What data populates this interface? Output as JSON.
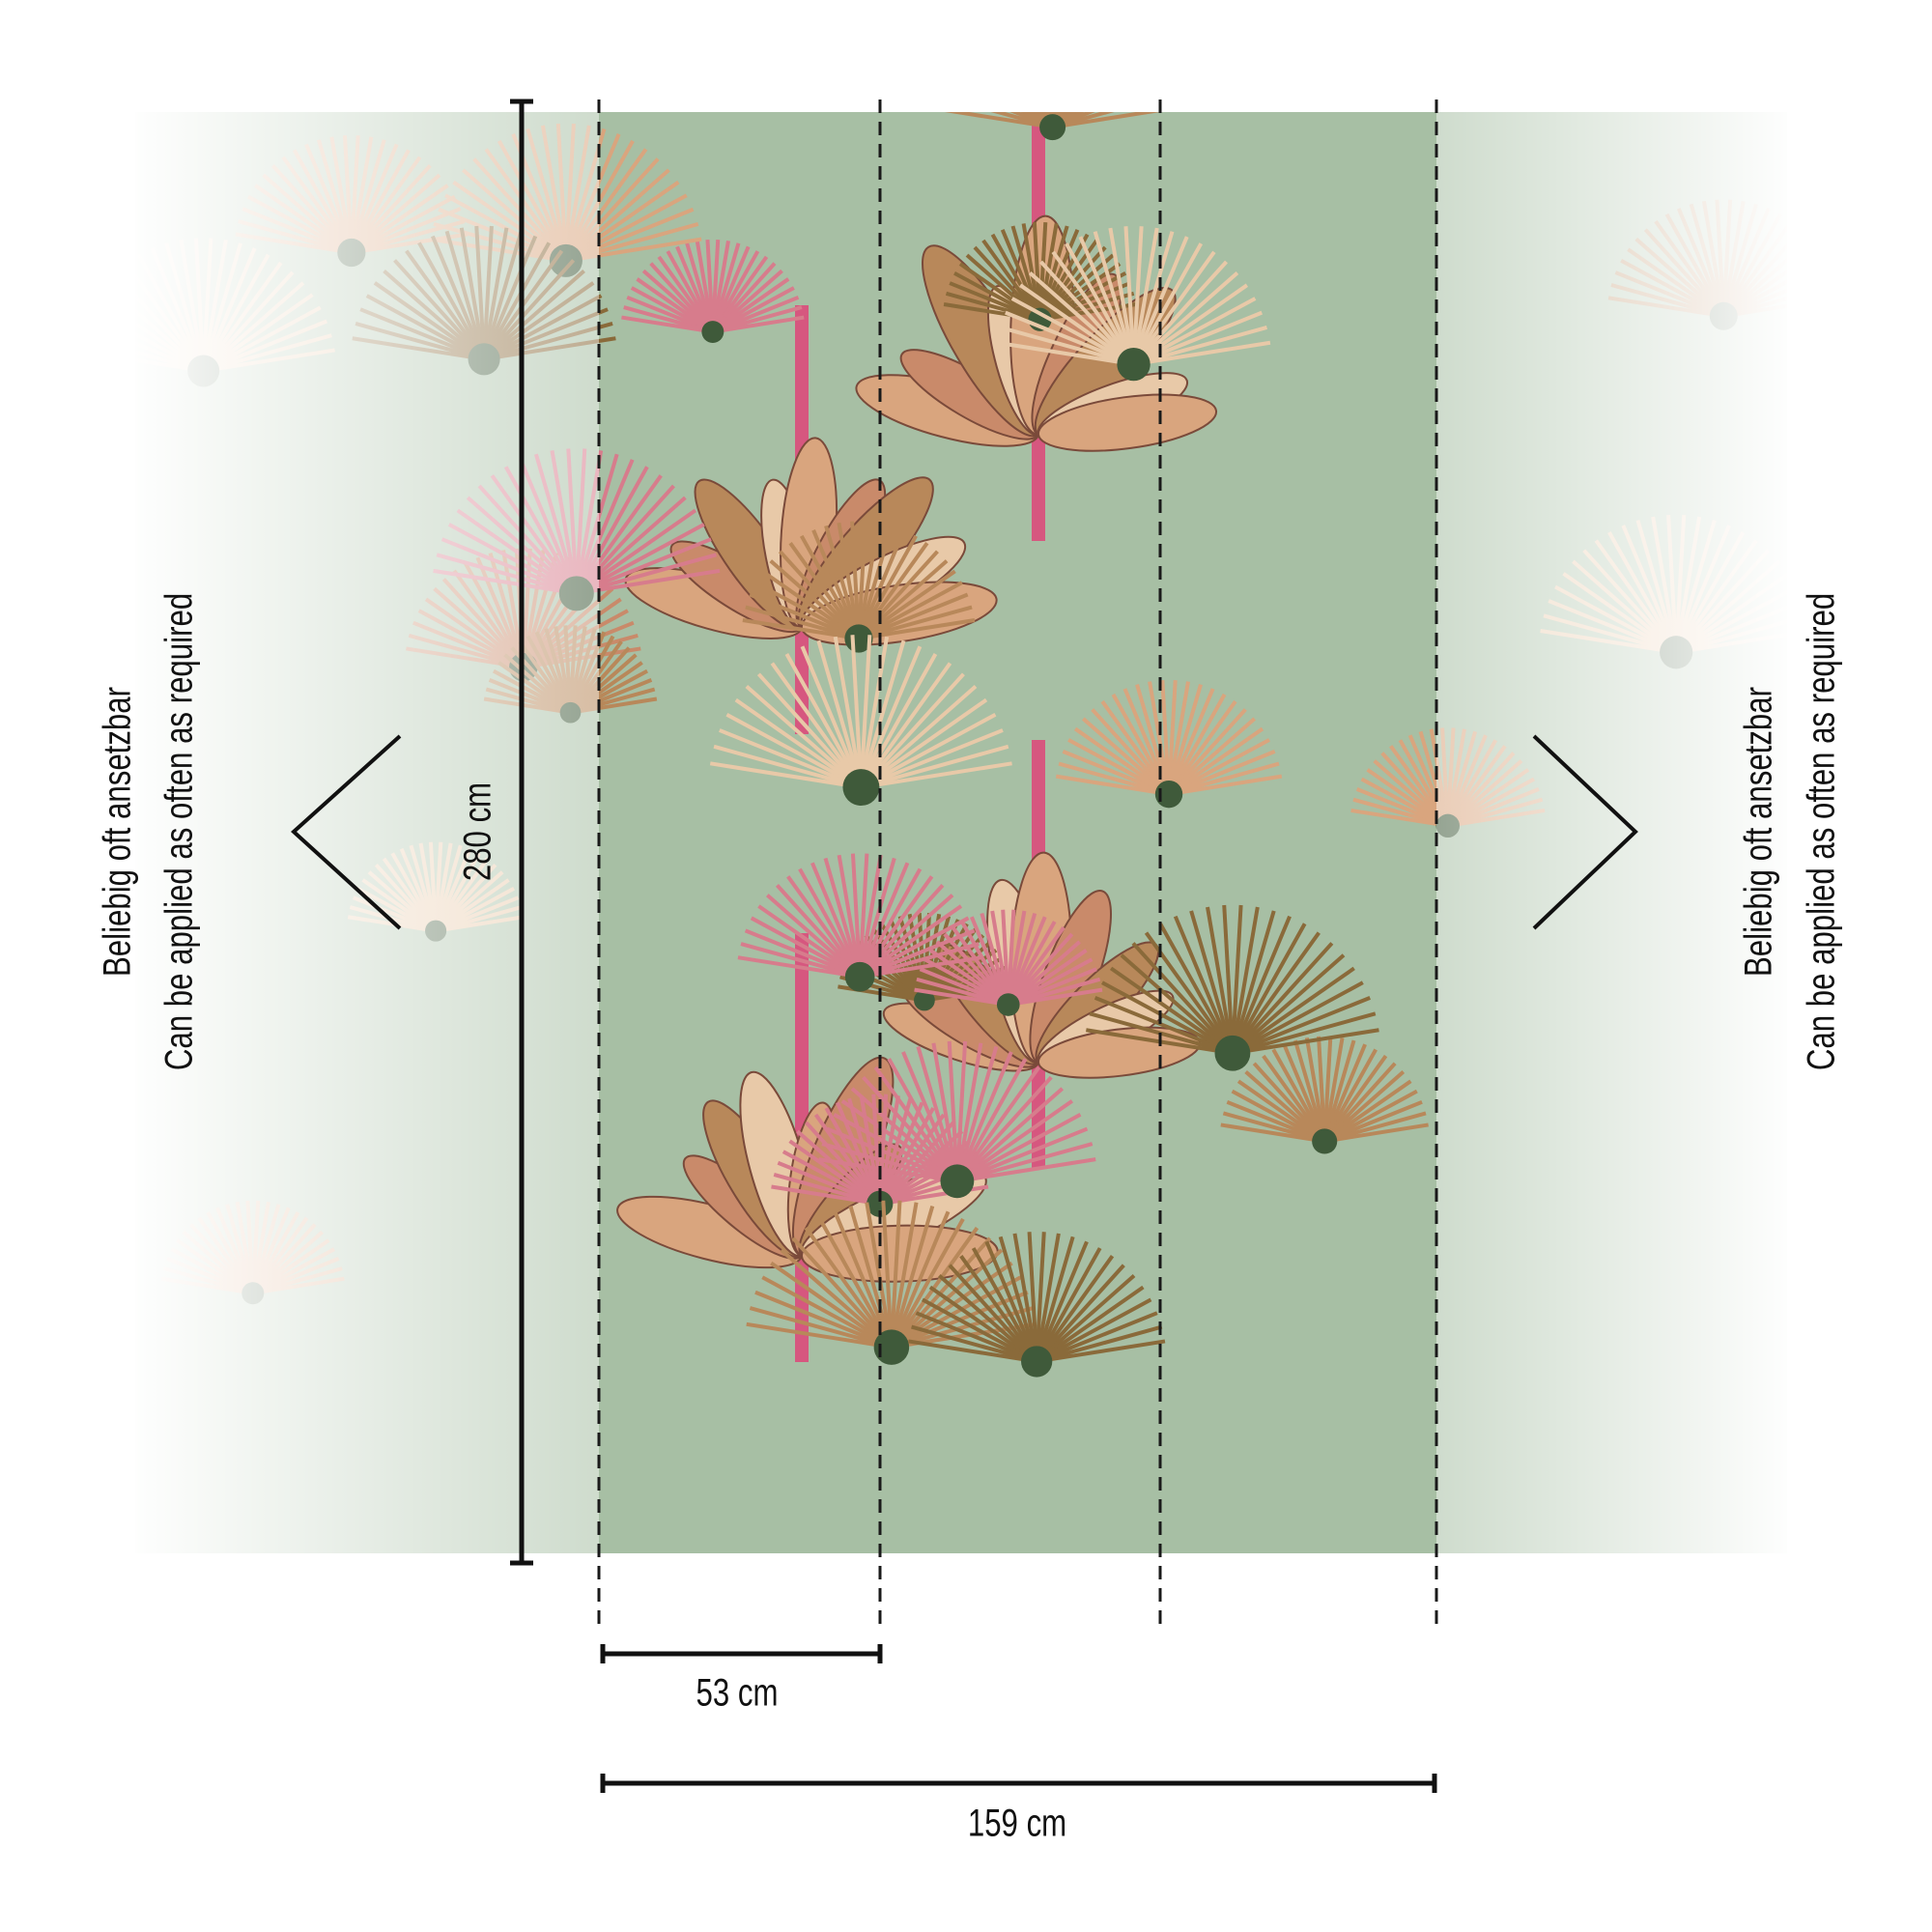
{
  "labels": {
    "height": "280 cm",
    "strip_width": "53 cm",
    "total_width": "159 cm",
    "repeat_de": "Beliebig oft ansetzbar",
    "repeat_en": "Can be applied as often as required"
  },
  "pattern": {
    "background_color": "#a7bfa4",
    "leaf_colors": [
      "#d9a57e",
      "#c98a6a",
      "#b8885a",
      "#e8c9a8",
      "#8a6a3a",
      "#d77c8c"
    ],
    "trunk_color": "#d6577f",
    "strips": 3
  },
  "icons": {
    "left": "chevron-left-icon",
    "right": "chevron-right-icon"
  }
}
